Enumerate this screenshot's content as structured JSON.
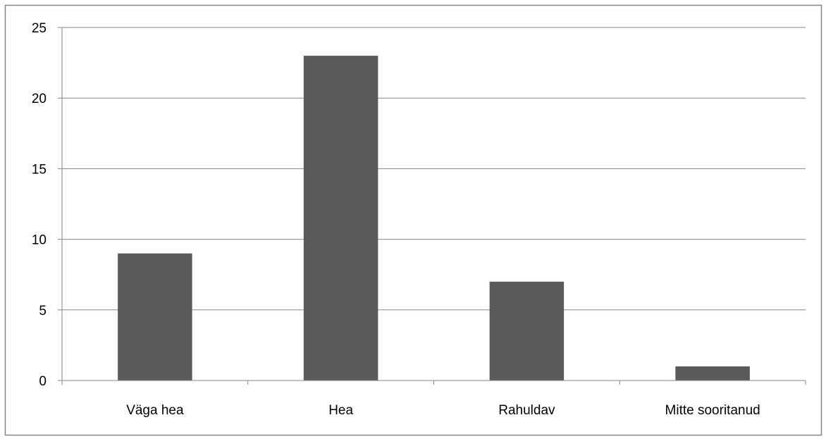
{
  "chart_data": {
    "type": "bar",
    "categories": [
      "Väga hea",
      "Hea",
      "Rahuldav",
      "Mitte sooritanud"
    ],
    "values": [
      9,
      23,
      7,
      1
    ],
    "title": "",
    "xlabel": "",
    "ylabel": "",
    "ylim": [
      0,
      25
    ],
    "yticks": [
      "0",
      "5",
      "10",
      "15",
      "20",
      "25"
    ],
    "grid": true,
    "legend": "none"
  },
  "colors": {
    "bar": "#595959",
    "grid": "#868686",
    "frame": "#868686"
  }
}
